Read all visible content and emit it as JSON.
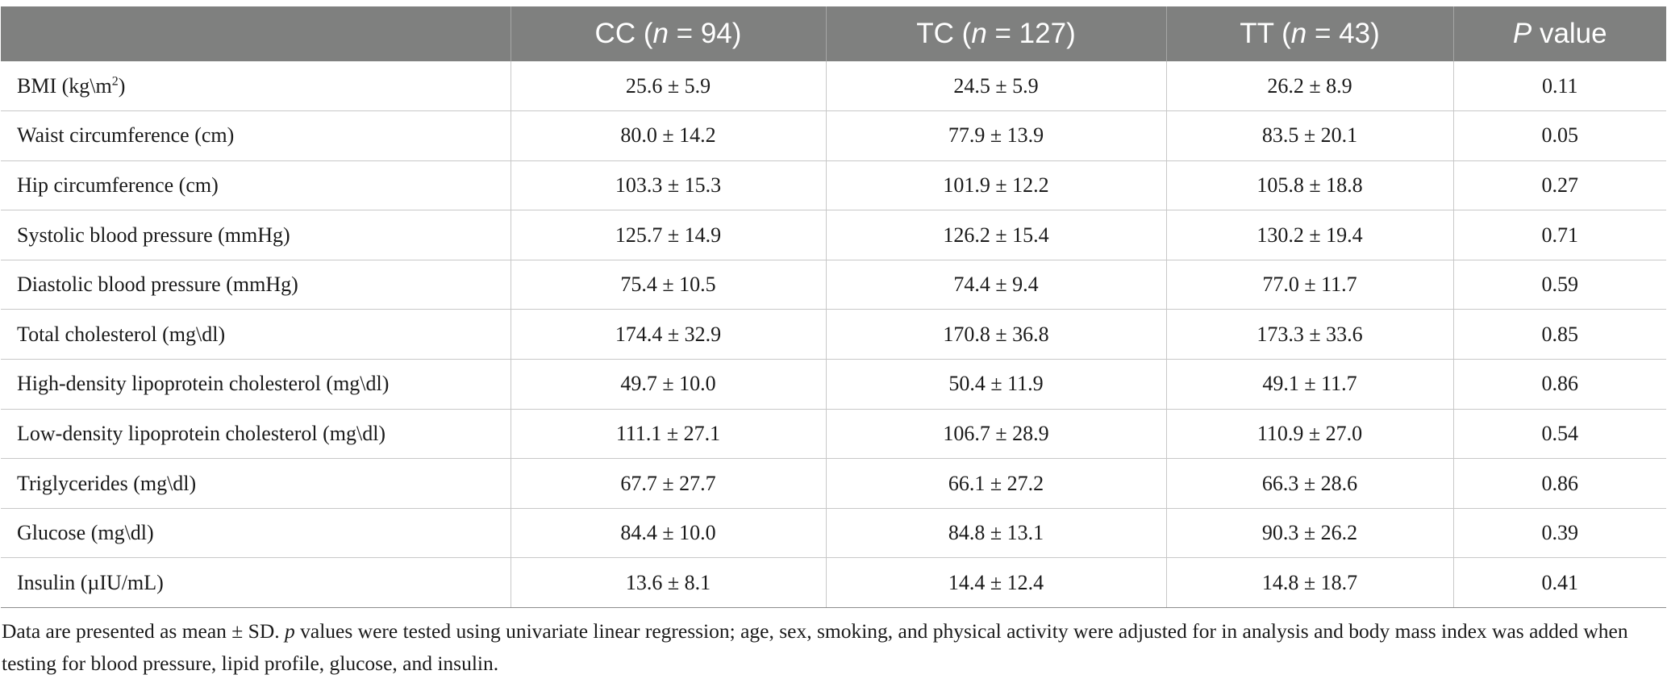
{
  "table": {
    "headers": [
      {
        "text": "",
        "italic": ""
      },
      {
        "before": "CC (",
        "italic": "n",
        "after": " = 94)"
      },
      {
        "before": "TC (",
        "italic": "n",
        "after": " = 127)"
      },
      {
        "before": "TT (",
        "italic": "n",
        "after": " = 43)"
      },
      {
        "before": "",
        "italic": "P",
        "after": " value"
      }
    ],
    "rows": [
      {
        "label": "BMI (kg\\m",
        "label_sup": "2",
        "label_after": ")",
        "cc": "25.6 ± 5.9",
        "tc": "24.5 ± 5.9",
        "tt": "26.2 ± 8.9",
        "p": "0.11"
      },
      {
        "label": "Waist circumference (cm)",
        "cc": "80.0 ± 14.2",
        "tc": "77.9 ± 13.9",
        "tt": "83.5 ± 20.1",
        "p": "0.05"
      },
      {
        "label": "Hip circumference (cm)",
        "cc": "103.3 ± 15.3",
        "tc": "101.9 ± 12.2",
        "tt": "105.8 ± 18.8",
        "p": "0.27"
      },
      {
        "label": "Systolic blood pressure (mmHg)",
        "cc": "125.7 ± 14.9",
        "tc": "126.2 ± 15.4",
        "tt": "130.2 ± 19.4",
        "p": "0.71"
      },
      {
        "label": "Diastolic blood pressure (mmHg)",
        "cc": "75.4 ± 10.5",
        "tc": "74.4 ± 9.4",
        "tt": "77.0 ± 11.7",
        "p": "0.59"
      },
      {
        "label": "Total cholesterol (mg\\dl)",
        "cc": "174.4 ± 32.9",
        "tc": "170.8 ± 36.8",
        "tt": "173.3 ± 33.6",
        "p": "0.85"
      },
      {
        "label": "High-density lipoprotein cholesterol (mg\\dl)",
        "cc": "49.7 ± 10.0",
        "tc": "50.4 ± 11.9",
        "tt": "49.1 ± 11.7",
        "p": "0.86"
      },
      {
        "label": "Low-density lipoprotein cholesterol (mg\\dl)",
        "cc": "111.1 ± 27.1",
        "tc": "106.7 ± 28.9",
        "tt": "110.9 ± 27.0",
        "p": "0.54"
      },
      {
        "label": "Triglycerides (mg\\dl)",
        "cc": "67.7 ± 27.7",
        "tc": "66.1 ± 27.2",
        "tt": "66.3 ± 28.6",
        "p": "0.86"
      },
      {
        "label": "Glucose (mg\\dl)",
        "cc": "84.4 ± 10.0",
        "tc": "84.8 ± 13.1",
        "tt": "90.3 ± 26.2",
        "p": "0.39"
      },
      {
        "label": "Insulin (µIU/mL)",
        "cc": "13.6 ± 8.1",
        "tc": "14.4 ± 12.4",
        "tt": "14.8 ± 18.7",
        "p": "0.41"
      }
    ]
  },
  "footnote": {
    "part1": "Data are presented as mean ± SD. ",
    "italic": "p",
    "part2": " values were tested using univariate linear regression; age, sex, smoking, and physical activity were adjusted for in analysis and body mass index was added when testing for blood pressure, lipid profile, glucose, and insulin."
  },
  "colors": {
    "header_bg": "#7f807f",
    "header_text": "#ffffff",
    "grid": "#c8c8c8",
    "text": "#1a1a1a"
  }
}
